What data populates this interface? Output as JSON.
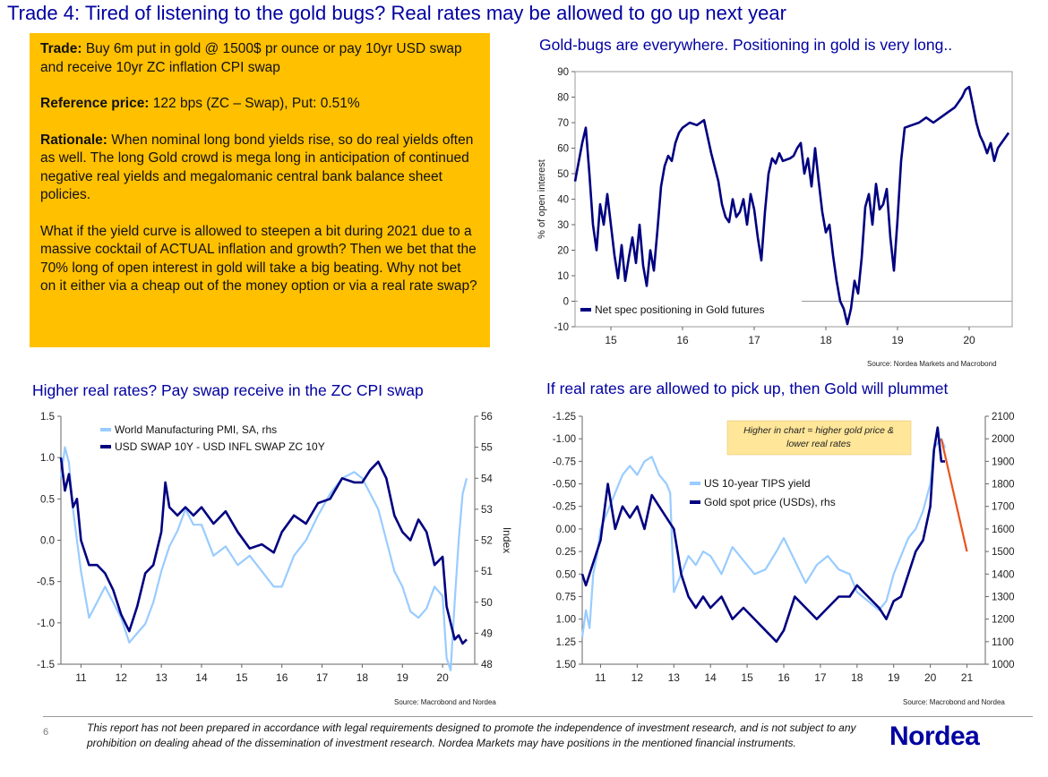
{
  "header": {
    "title": "Trade 4: Tired of listening to the gold bugs? Real rates may be allowed to go up next year"
  },
  "trade_box": {
    "trade_label": "Trade:",
    "trade_text": " Buy 6m put in gold @ 1500$ pr ounce or pay 10yr USD swap and receive 10yr ZC inflation CPI swap",
    "reference_label": "Reference price:",
    "reference_text": " 122 bps (ZC – Swap), Put: 0.51%",
    "rationale_label": "Rationale:",
    "rationale_text": " When nominal long bond yields rise, so do real yields often as well. The long Gold crowd is mega long in anticipation of continued negative real yields and megalomanic central bank balance sheet policies.",
    "question_text": "What if the yield curve is allowed to steepen a bit during 2021 due to a massive cocktail of ACTUAL inflation and growth? Then we bet that the 70% long of open interest in gold will take a big beating. Why not bet on it either via a cheap out of the money option or via a real rate swap?"
  },
  "charts": {
    "positioning": {
      "title": "Gold-bugs are everywhere. Positioning in gold is very long..",
      "source": "Source: Nordea Markets and Macrobond"
    },
    "real_rates": {
      "title": "Higher real rates? Pay swap receive in the ZC CPI swap",
      "source": "Source: Macrobond and Nordea"
    },
    "gold_tips": {
      "title": "If real rates are allowed to pick up, then Gold will plummet",
      "source": "Source: Macrobond and Nordea",
      "note": [
        "Higher in chart = higher gold price &",
        "lower real rates"
      ]
    }
  },
  "footer": {
    "page_number": "6",
    "disclaimer": "This report has not been prepared in accordance with legal requirements designed to promote the independence of investment research, and is not subject to any prohibition on dealing ahead of the dissemination of investment research. Nordea Markets may have positions in the mentioned financial instruments.",
    "brand": "Nordea"
  },
  "colors": {
    "dark_blue": "#000080",
    "light_blue": "#99CCFF",
    "orange": "#E8541E",
    "gold_box": "#FFC000",
    "note_box": "#FFE699"
  },
  "chart_data": [
    {
      "id": "positioning",
      "type": "line",
      "ylabel": "% of open interest",
      "ylim": [
        -10,
        90
      ],
      "yticks": [
        -10,
        0,
        10,
        20,
        30,
        40,
        50,
        60,
        70,
        80,
        90
      ],
      "xlim": [
        14.5,
        20.6
      ],
      "xticks": [
        15,
        16,
        17,
        18,
        19,
        20
      ],
      "grid": false,
      "legend": "bottom-left",
      "series": [
        {
          "name": "Net spec positioning in Gold futures",
          "color": "#000080",
          "x": [
            14.5,
            14.6,
            14.65,
            14.7,
            14.75,
            14.8,
            14.85,
            14.9,
            14.95,
            15.0,
            15.05,
            15.1,
            15.15,
            15.2,
            15.25,
            15.3,
            15.35,
            15.4,
            15.45,
            15.5,
            15.55,
            15.6,
            15.65,
            15.7,
            15.75,
            15.8,
            15.85,
            15.9,
            15.95,
            16.0,
            16.1,
            16.2,
            16.3,
            16.4,
            16.5,
            16.55,
            16.6,
            16.65,
            16.7,
            16.75,
            16.8,
            16.85,
            16.9,
            16.95,
            17.0,
            17.05,
            17.1,
            17.15,
            17.2,
            17.25,
            17.3,
            17.35,
            17.4,
            17.5,
            17.55,
            17.6,
            17.65,
            17.7,
            17.75,
            17.8,
            17.85,
            17.9,
            17.95,
            18.0,
            18.05,
            18.1,
            18.15,
            18.2,
            18.25,
            18.3,
            18.35,
            18.4,
            18.45,
            18.5,
            18.55,
            18.6,
            18.65,
            18.7,
            18.75,
            18.8,
            18.85,
            18.9,
            18.95,
            19.0,
            19.05,
            19.1,
            19.2,
            19.3,
            19.4,
            19.5,
            19.6,
            19.7,
            19.8,
            19.85,
            19.9,
            19.95,
            20.0,
            20.05,
            20.1,
            20.15,
            20.2,
            20.25,
            20.3,
            20.35,
            20.4,
            20.45,
            20.5,
            20.55
          ],
          "y": [
            47,
            62,
            68,
            50,
            30,
            20,
            38,
            30,
            42,
            30,
            18,
            9,
            22,
            8,
            17,
            25,
            15,
            30,
            14,
            6,
            20,
            12,
            28,
            45,
            53,
            57,
            55,
            62,
            66,
            68,
            70,
            69,
            71,
            58,
            47,
            38,
            33,
            31,
            40,
            33,
            35,
            40,
            30,
            42,
            36,
            25,
            16,
            35,
            50,
            56,
            54,
            58,
            55,
            56,
            57,
            60,
            62,
            50,
            56,
            45,
            60,
            47,
            35,
            27,
            30,
            18,
            8,
            0,
            -3,
            -9,
            -3,
            8,
            3,
            17,
            37,
            42,
            30,
            46,
            36,
            38,
            44,
            25,
            12,
            32,
            55,
            68,
            69,
            70,
            72,
            70,
            72,
            74,
            76,
            78,
            80,
            83,
            84,
            77,
            70,
            65,
            62,
            58,
            62,
            55,
            60,
            62,
            64,
            66
          ]
        }
      ]
    },
    {
      "id": "real_rates",
      "type": "line",
      "ylim": [
        -1.5,
        1.5
      ],
      "yticks": [
        -1.5,
        -1.0,
        -0.5,
        0.0,
        0.5,
        1.0,
        1.5
      ],
      "ylabel": "",
      "y2label": "Index",
      "y2lim": [
        48,
        56
      ],
      "y2ticks": [
        48,
        49,
        50,
        51,
        52,
        53,
        54,
        55,
        56
      ],
      "xlim": [
        10.5,
        20.8
      ],
      "xticks": [
        11,
        12,
        13,
        14,
        15,
        16,
        17,
        18,
        19,
        20
      ],
      "grid": false,
      "legend": "top-left",
      "series": [
        {
          "name": "World Manufacturing PMI, SA, rhs",
          "color": "#99CCFF",
          "axis": "right",
          "x": [
            10.5,
            10.6,
            10.7,
            10.8,
            10.9,
            11.0,
            11.2,
            11.4,
            11.6,
            11.8,
            12.0,
            12.2,
            12.4,
            12.6,
            12.8,
            13.0,
            13.2,
            13.4,
            13.6,
            13.8,
            14.0,
            14.3,
            14.6,
            14.9,
            15.2,
            15.5,
            15.8,
            16.0,
            16.3,
            16.6,
            16.9,
            17.2,
            17.5,
            17.8,
            18.0,
            18.2,
            18.4,
            18.6,
            18.8,
            19.0,
            19.2,
            19.4,
            19.6,
            19.8,
            20.0,
            20.1,
            20.2,
            20.3,
            20.4,
            20.5,
            20.6
          ],
          "y": [
            54,
            55,
            54.5,
            53,
            52,
            51,
            49.5,
            50,
            50.5,
            50,
            49.5,
            48.7,
            49,
            49.3,
            50,
            51,
            51.8,
            52.3,
            53,
            52.5,
            52.5,
            51.5,
            51.8,
            51.2,
            51.5,
            51,
            50.5,
            50.5,
            51.5,
            52,
            52.8,
            53.5,
            54,
            54.2,
            54,
            53.5,
            53,
            52,
            51,
            50.5,
            49.7,
            49.5,
            49.8,
            50.5,
            50.2,
            48.2,
            47.8,
            50,
            52,
            53.5,
            54
          ]
        },
        {
          "name": "USD SWAP 10Y - USD INFL SWAP ZC 10Y",
          "color": "#000080",
          "axis": "left",
          "x": [
            10.5,
            10.6,
            10.7,
            10.8,
            10.9,
            11.0,
            11.2,
            11.4,
            11.6,
            11.8,
            12.0,
            12.2,
            12.4,
            12.6,
            12.8,
            13.0,
            13.1,
            13.2,
            13.4,
            13.6,
            13.8,
            14.0,
            14.3,
            14.6,
            14.9,
            15.2,
            15.5,
            15.8,
            16.0,
            16.3,
            16.6,
            16.9,
            17.2,
            17.5,
            17.8,
            18.0,
            18.2,
            18.4,
            18.6,
            18.8,
            19.0,
            19.2,
            19.4,
            19.6,
            19.8,
            20.0,
            20.1,
            20.2,
            20.3,
            20.4,
            20.5,
            20.6
          ],
          "y": [
            1.0,
            0.6,
            0.8,
            0.4,
            0.5,
            0.0,
            -0.3,
            -0.3,
            -0.4,
            -0.6,
            -0.9,
            -1.1,
            -0.8,
            -0.4,
            -0.3,
            0.1,
            0.7,
            0.4,
            0.3,
            0.4,
            0.3,
            0.4,
            0.2,
            0.35,
            0.1,
            -0.1,
            -0.05,
            -0.15,
            0.1,
            0.3,
            0.2,
            0.45,
            0.5,
            0.75,
            0.7,
            0.7,
            0.85,
            0.95,
            0.75,
            0.3,
            0.1,
            0.0,
            0.25,
            0.1,
            -0.3,
            -0.2,
            -0.8,
            -1.0,
            -1.2,
            -1.15,
            -1.25,
            -1.2
          ]
        }
      ]
    },
    {
      "id": "gold_tips",
      "type": "line",
      "ylim": [
        1.5,
        -1.25
      ],
      "yticks": [
        -1.25,
        -1.0,
        -0.75,
        -0.5,
        -0.25,
        0.0,
        0.25,
        0.5,
        0.75,
        1.0,
        1.25,
        1.5
      ],
      "ytick_labels": [
        "-1.25",
        "-1.00",
        "-0.75",
        "-0.50",
        "-0.25",
        "0.00",
        "0.25",
        "0.50",
        "0.75",
        "1.00",
        "1.25",
        "1.50"
      ],
      "y2lim": [
        1000,
        2100
      ],
      "y2ticks": [
        1000,
        1100,
        1200,
        1300,
        1400,
        1500,
        1600,
        1700,
        1800,
        1900,
        2000,
        2100
      ],
      "xlim": [
        10.5,
        21.5
      ],
      "xticks": [
        11,
        12,
        13,
        14,
        15,
        16,
        17,
        18,
        19,
        20,
        21
      ],
      "grid": false,
      "legend": "center",
      "series": [
        {
          "name": "US 10-year TIPS yield",
          "color": "#99CCFF",
          "axis": "left",
          "x": [
            10.5,
            10.6,
            10.7,
            10.8,
            10.9,
            11.0,
            11.2,
            11.4,
            11.6,
            11.8,
            12.0,
            12.2,
            12.4,
            12.6,
            12.8,
            12.9,
            13.0,
            13.2,
            13.4,
            13.6,
            13.8,
            14.0,
            14.3,
            14.6,
            14.9,
            15.2,
            15.5,
            15.8,
            16.0,
            16.3,
            16.6,
            16.9,
            17.2,
            17.5,
            17.8,
            18.0,
            18.3,
            18.6,
            18.8,
            19.0,
            19.2,
            19.4,
            19.6,
            19.8,
            20.0,
            20.1,
            20.2,
            20.3,
            20.4
          ],
          "y": [
            1.2,
            0.9,
            1.1,
            0.5,
            0.3,
            0.0,
            -0.2,
            -0.4,
            -0.6,
            -0.7,
            -0.6,
            -0.75,
            -0.8,
            -0.6,
            -0.5,
            -0.4,
            0.7,
            0.5,
            0.3,
            0.4,
            0.25,
            0.3,
            0.5,
            0.2,
            0.35,
            0.5,
            0.45,
            0.25,
            0.1,
            0.35,
            0.6,
            0.4,
            0.3,
            0.45,
            0.5,
            0.7,
            0.8,
            0.9,
            0.8,
            0.5,
            0.3,
            0.1,
            0.0,
            -0.2,
            -0.5,
            -0.9,
            -0.95,
            -1.0,
            -0.9
          ]
        },
        {
          "name": "Gold spot price (USDs), rhs",
          "color": "#000080",
          "axis": "right",
          "x": [
            10.5,
            10.6,
            10.7,
            10.8,
            10.9,
            11.0,
            11.2,
            11.4,
            11.6,
            11.8,
            12.0,
            12.2,
            12.4,
            12.6,
            12.8,
            13.0,
            13.2,
            13.4,
            13.6,
            13.8,
            14.0,
            14.3,
            14.6,
            14.9,
            15.2,
            15.5,
            15.8,
            16.0,
            16.3,
            16.6,
            16.9,
            17.2,
            17.5,
            17.8,
            18.0,
            18.3,
            18.6,
            18.8,
            19.0,
            19.2,
            19.4,
            19.6,
            19.8,
            20.0,
            20.1,
            20.2,
            20.3,
            20.4
          ],
          "y": [
            1400,
            1350,
            1400,
            1450,
            1500,
            1550,
            1800,
            1600,
            1700,
            1650,
            1700,
            1600,
            1750,
            1700,
            1650,
            1600,
            1400,
            1300,
            1250,
            1300,
            1250,
            1300,
            1200,
            1250,
            1200,
            1150,
            1100,
            1150,
            1300,
            1250,
            1200,
            1250,
            1300,
            1300,
            1350,
            1300,
            1250,
            1200,
            1280,
            1300,
            1400,
            1500,
            1550,
            1700,
            1950,
            2050,
            1900,
            1900
          ]
        },
        {
          "name": "",
          "color": "#E8541E",
          "axis": "right",
          "x": [
            20.3,
            21.0
          ],
          "y": [
            2000,
            1500
          ]
        }
      ]
    }
  ]
}
